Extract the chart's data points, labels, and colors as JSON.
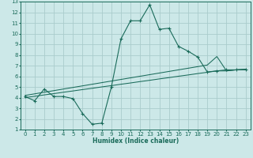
{
  "xlabel": "Humidex (Indice chaleur)",
  "bg_color": "#cce8e8",
  "grid_color": "#aacccc",
  "line_color": "#1a6b5a",
  "xlim": [
    -0.5,
    23.5
  ],
  "ylim": [
    1,
    13
  ],
  "xticks": [
    0,
    1,
    2,
    3,
    4,
    5,
    6,
    7,
    8,
    9,
    10,
    11,
    12,
    13,
    14,
    15,
    16,
    17,
    18,
    19,
    20,
    21,
    22,
    23
  ],
  "yticks": [
    1,
    2,
    3,
    4,
    5,
    6,
    7,
    8,
    9,
    10,
    11,
    12,
    13
  ],
  "curve1_x": [
    0,
    1,
    2,
    3,
    4,
    5,
    6,
    7,
    8,
    9,
    10,
    11,
    12,
    13,
    14,
    15,
    16,
    17,
    18,
    19,
    20,
    21,
    22,
    23
  ],
  "curve1_y": [
    4.1,
    3.7,
    4.8,
    4.1,
    4.1,
    3.9,
    2.5,
    1.5,
    1.6,
    5.0,
    9.5,
    11.2,
    11.2,
    12.7,
    10.4,
    10.5,
    8.8,
    8.35,
    7.8,
    6.4,
    6.5,
    6.6,
    6.6,
    6.6
  ],
  "curve2_x": [
    0,
    1,
    2,
    3,
    4,
    5,
    6,
    7,
    8,
    9,
    10,
    11,
    12,
    13,
    14,
    15,
    16,
    17,
    18,
    19,
    20,
    21,
    22,
    23
  ],
  "curve2_y": [
    4.2,
    4.35,
    4.5,
    4.65,
    4.8,
    4.95,
    5.1,
    5.25,
    5.4,
    5.55,
    5.7,
    5.85,
    6.0,
    6.15,
    6.3,
    6.45,
    6.6,
    6.75,
    6.9,
    7.05,
    7.85,
    6.5,
    6.6,
    6.65
  ],
  "curve3_x": [
    0,
    1,
    2,
    3,
    4,
    5,
    6,
    7,
    8,
    9,
    10,
    11,
    12,
    13,
    14,
    15,
    16,
    17,
    18,
    19,
    20,
    21,
    22,
    23
  ],
  "curve3_y": [
    4.0,
    4.12,
    4.25,
    4.37,
    4.5,
    4.62,
    4.75,
    4.87,
    5.0,
    5.12,
    5.25,
    5.37,
    5.5,
    5.62,
    5.75,
    5.87,
    6.0,
    6.12,
    6.25,
    6.37,
    6.5,
    6.5,
    6.6,
    6.65
  ]
}
